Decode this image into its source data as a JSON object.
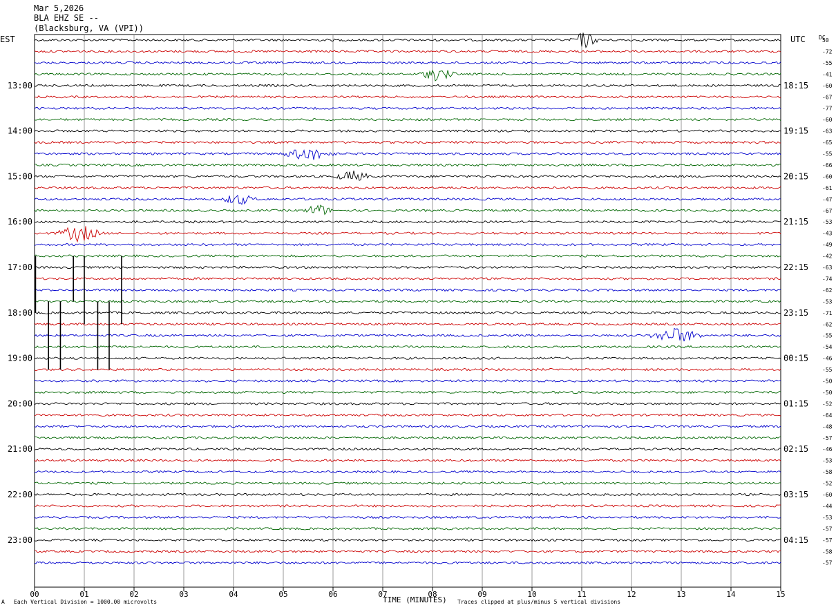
{
  "header": {
    "date": "Mar 5,2026",
    "station": "BLA EHZ SE --",
    "location": "(Blacksburg, VA (VPI))"
  },
  "left_tz": "EST",
  "right_tz": "UTC",
  "dc_label": "DC",
  "footer": {
    "scale": "Each Vertical Division = 1000.00 microvolts",
    "clip": "Traces clipped at plus/minus 5 vertical divisions",
    "mark": "A"
  },
  "colors": {
    "black": "#000000",
    "red": "#cc0000",
    "blue": "#0000cc",
    "green": "#006600",
    "grid": "#808080"
  },
  "chart_data": {
    "type": "line",
    "title": "BLA EHZ SE -- Mar 5,2026",
    "xlabel": "TIME (MINUTES)",
    "x_ticks": [
      "00",
      "01",
      "02",
      "03",
      "04",
      "05",
      "06",
      "07",
      "08",
      "09",
      "10",
      "11",
      "12",
      "13",
      "14",
      "15"
    ],
    "xlim": [
      0,
      15
    ],
    "trace_color_cycle": [
      "black",
      "red",
      "blue",
      "green"
    ],
    "left_hour_labels": [
      "13:00",
      "14:00",
      "15:00",
      "16:00",
      "17:00",
      "18:00",
      "19:00",
      "20:00",
      "21:00",
      "22:00",
      "23:00"
    ],
    "right_hour_labels": [
      "18:15",
      "19:15",
      "20:15",
      "21:15",
      "22:15",
      "23:15",
      "00:15",
      "01:15",
      "02:15",
      "03:15",
      "04:15"
    ],
    "dc_offsets": [
      50,
      -72,
      -55,
      -41,
      -60,
      -67,
      -77,
      -60,
      -63,
      -65,
      -55,
      -66,
      -60,
      -61,
      -47,
      -67,
      -53,
      -43,
      -49,
      -42,
      -63,
      -74,
      -62,
      -53,
      -71,
      -62,
      -55,
      -54,
      -46,
      -55,
      -50,
      -50,
      -52,
      -64,
      -48,
      -57,
      -46,
      -53,
      -58,
      -52,
      -60,
      -44,
      -53,
      -57,
      -57,
      -58,
      -57
    ],
    "events": [
      {
        "trace": 0,
        "minute": 11.05,
        "amplitude": 4,
        "duration": 0.3
      },
      {
        "trace": 3,
        "minute": 8.1,
        "amplitude": 3,
        "duration": 0.4
      },
      {
        "trace": 10,
        "minute": 5.5,
        "amplitude": 3,
        "duration": 0.6
      },
      {
        "trace": 12,
        "minute": 6.4,
        "amplitude": 2.5,
        "duration": 0.4
      },
      {
        "trace": 14,
        "minute": 4.1,
        "amplitude": 2.5,
        "duration": 0.4
      },
      {
        "trace": 15,
        "minute": 5.7,
        "amplitude": 3,
        "duration": 0.3
      },
      {
        "trace": 17,
        "minute": 0.9,
        "amplitude": 4,
        "duration": 0.5
      },
      {
        "trace": 26,
        "minute": 12.9,
        "amplitude": 3.5,
        "duration": 0.6
      }
    ]
  }
}
